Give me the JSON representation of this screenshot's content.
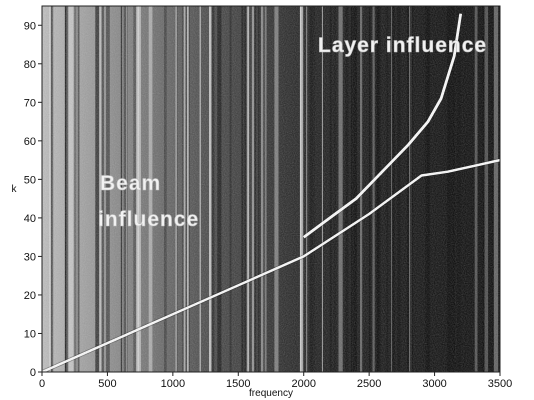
{
  "chart_data": {
    "type": "heatmap",
    "title": "",
    "xlabel": "frequency",
    "ylabel": "k",
    "xlim": [
      0,
      3500
    ],
    "ylim": [
      0,
      95
    ],
    "x_ticks": [
      0,
      500,
      1000,
      1500,
      2000,
      2500,
      3000,
      3500
    ],
    "y_ticks": [
      0,
      10,
      20,
      30,
      40,
      50,
      60,
      70,
      80,
      90
    ],
    "grid": false,
    "colormap": "grayscale, dark background with bright dispersion ridges",
    "annotations": [
      {
        "text": "Layer influence",
        "x": 2350,
        "y": 85
      },
      {
        "text": "Beam",
        "x": 450,
        "y": 48
      },
      {
        "text": "influence",
        "x": 400,
        "y": 39
      }
    ],
    "ridges": [
      {
        "name": "",
        "x": [
          0,
          500,
          1000,
          1500,
          2000,
          2500,
          2900,
          3100,
          3300,
          3500
        ],
        "y": [
          0,
          7.5,
          15,
          22.5,
          30,
          41,
          51,
          52,
          53.5,
          55
        ]
      },
      {
        "name": "",
        "x": [
          2000,
          2200,
          2400,
          2600,
          2800,
          2950,
          3050,
          3150,
          3200
        ],
        "y": [
          35,
          40,
          45,
          52,
          59,
          65,
          71,
          82,
          93
        ]
      }
    ]
  }
}
